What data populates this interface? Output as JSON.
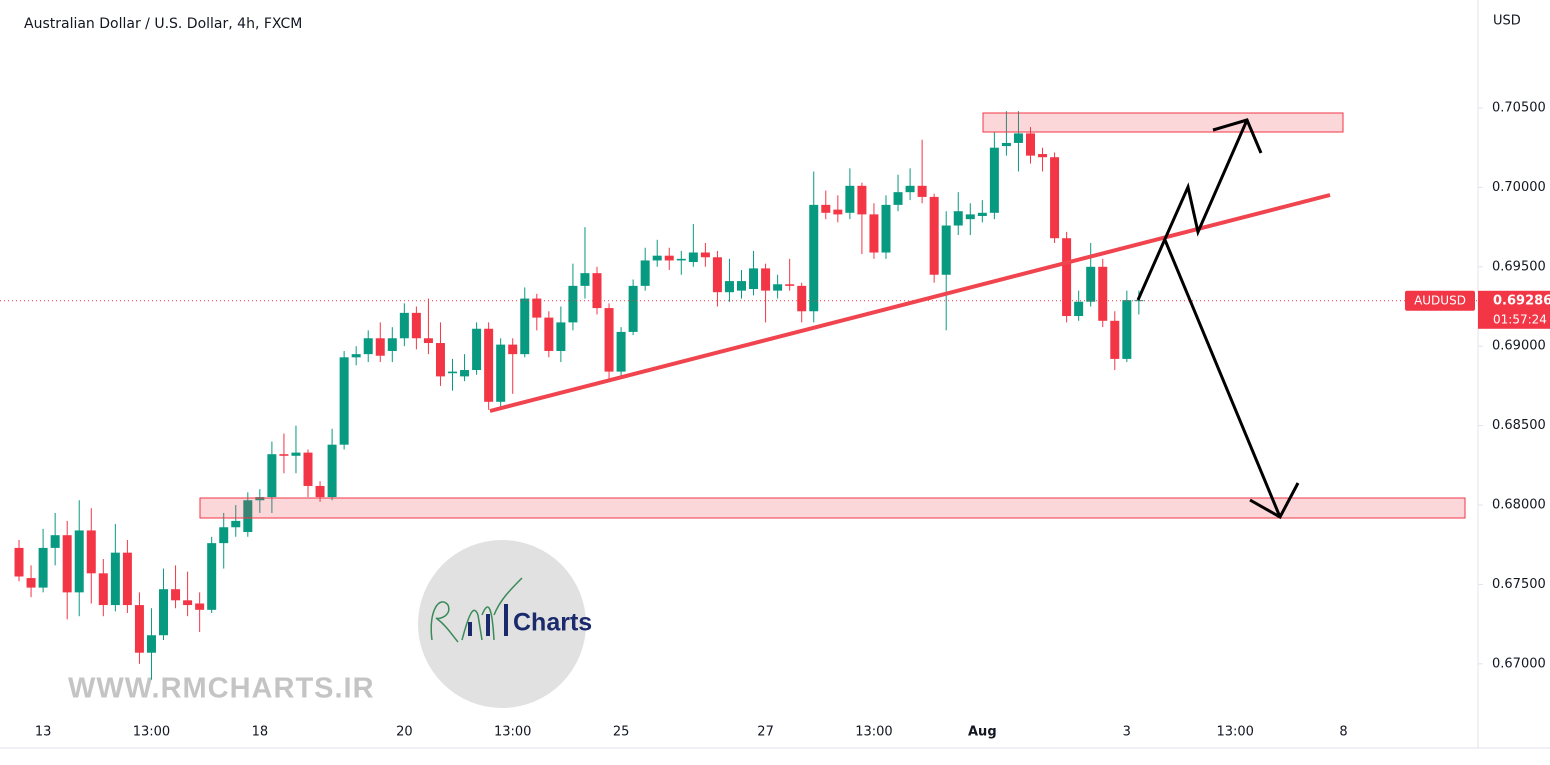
{
  "chart_data": {
    "type": "candlestick",
    "title": "Australian Dollar / U.S. Dollar, 4h, FXCM",
    "y_axis_label": "USD",
    "symbol": "AUDUSD",
    "last_price": 0.69286,
    "countdown": "01:57:24",
    "watermark": {
      "logo_text": "Charts",
      "url": "WWW.RMCHARTS.IR"
    },
    "up_color": "#089981",
    "down_color": "#f23645",
    "ylim": [
      0.6647,
      0.7118
    ],
    "yticks": [
      {
        "value": 0.67,
        "label": "0.67000"
      },
      {
        "value": 0.675,
        "label": "0.67500"
      },
      {
        "value": 0.68,
        "label": "0.68000"
      },
      {
        "value": 0.685,
        "label": "0.68500"
      },
      {
        "value": 0.69,
        "label": "0.69000"
      },
      {
        "value": 0.695,
        "label": "0.69500"
      },
      {
        "value": 0.7,
        "label": "0.70000"
      },
      {
        "value": 0.705,
        "label": "0.70500"
      }
    ],
    "categories": [
      null,
      null,
      "13",
      null,
      null,
      null,
      null,
      null,
      null,
      null,
      null,
      "13:00",
      null,
      null,
      null,
      null,
      null,
      null,
      null,
      null,
      "18",
      null,
      null,
      null,
      null,
      null,
      null,
      null,
      null,
      null,
      null,
      null,
      "20",
      null,
      null,
      null,
      null,
      null,
      null,
      null,
      null,
      "13:00",
      null,
      null,
      null,
      null,
      null,
      null,
      null,
      null,
      "25",
      null,
      null,
      null,
      null,
      null,
      null,
      null,
      null,
      null,
      null,
      null,
      "27",
      null,
      null,
      null,
      null,
      null,
      null,
      null,
      null,
      "13:00",
      null,
      null,
      null,
      null,
      null,
      null,
      null,
      null,
      "Aug",
      null,
      null,
      null,
      null,
      null,
      null,
      null,
      null,
      null,
      null,
      null,
      "3",
      null,
      null,
      null,
      null,
      null,
      null,
      null,
      null,
      "13:00",
      null,
      null,
      null,
      null,
      null,
      null,
      null,
      null,
      "8",
      null,
      null,
      null,
      null,
      null,
      null,
      null,
      null,
      null,
      null
    ],
    "open": [
      0.6773,
      0.6754,
      0.6748,
      0.6773,
      0.6781,
      0.6745,
      0.6784,
      0.6757,
      0.6737,
      0.677,
      0.6737,
      0.6707,
      0.6718,
      0.6747,
      0.674,
      0.6738,
      0.6734,
      0.6776,
      0.6786,
      0.6783,
      0.6803,
      0.6805,
      0.6832,
      0.6831,
      0.6833,
      0.6812,
      0.6805,
      0.6838,
      0.6893,
      0.6895,
      0.6905,
      0.6897,
      0.6905,
      0.6921,
      0.6905,
      0.6902,
      0.6883,
      0.6881,
      0.6885,
      0.6911,
      0.6865,
      0.6901,
      0.6895,
      0.693,
      0.6918,
      0.6897,
      0.6915,
      0.6938,
      0.6946,
      0.6924,
      0.6884,
      0.6909,
      0.6938,
      0.6954,
      0.6957,
      0.6954,
      0.6953,
      0.6959,
      0.6956,
      0.6934,
      0.6935,
      0.6936,
      0.6949,
      0.6935,
      0.6939,
      0.6938,
      0.6922,
      0.6989,
      0.6986,
      0.6984,
      0.7001,
      0.6983,
      0.6959,
      0.6989,
      0.6997,
      0.7001,
      0.6994,
      0.6945,
      0.6976,
      0.698,
      0.6982,
      0.6984,
      0.7026,
      0.7028,
      0.7034,
      0.7021,
      0.7019,
      0.6968,
      0.6919,
      0.6928,
      0.695,
      0.6916,
      0.6892,
      0.6929,
      null,
      null,
      null,
      null,
      null,
      null,
      null,
      null,
      null,
      null,
      null,
      null,
      null,
      null,
      null,
      null,
      null,
      null,
      null,
      null,
      null,
      null,
      null,
      null,
      null,
      null,
      null
    ],
    "high": [
      0.6778,
      0.6762,
      0.6785,
      0.6795,
      0.679,
      0.6803,
      0.6798,
      0.6766,
      0.6788,
      0.6778,
      0.6745,
      0.6735,
      0.676,
      0.6762,
      0.6758,
      0.6745,
      0.678,
      0.6795,
      0.68,
      0.6808,
      0.681,
      0.684,
      0.6845,
      0.685,
      0.6835,
      0.6815,
      0.6848,
      0.6897,
      0.69,
      0.691,
      0.6915,
      0.6912,
      0.6927,
      0.6925,
      0.693,
      0.6915,
      0.6892,
      0.6895,
      0.6915,
      0.6915,
      0.6905,
      0.6905,
      0.6937,
      0.6933,
      0.6922,
      0.6925,
      0.6952,
      0.6975,
      0.695,
      0.6927,
      0.6912,
      0.6942,
      0.6962,
      0.6967,
      0.6962,
      0.696,
      0.6977,
      0.6965,
      0.696,
      0.6955,
      0.6948,
      0.696,
      0.6952,
      0.6945,
      0.6955,
      0.694,
      0.701,
      0.6998,
      0.6995,
      0.7012,
      0.7003,
      0.699,
      0.6995,
      0.7008,
      0.7012,
      0.703,
      0.6996,
      0.6985,
      0.6997,
      0.699,
      0.6992,
      0.7035,
      0.7048,
      0.7048,
      0.7038,
      0.7025,
      0.7022,
      0.6972,
      0.6935,
      0.6965,
      0.6955,
      0.6922,
      0.6935,
      0.6935,
      null,
      null,
      null,
      null,
      null,
      null,
      null,
      null,
      null,
      null,
      null,
      null,
      null,
      null,
      null,
      null,
      null,
      null,
      null,
      null,
      null,
      null,
      null,
      null,
      null,
      null,
      null
    ],
    "low": [
      0.6752,
      0.6742,
      0.6745,
      0.6762,
      0.6728,
      0.673,
      0.6738,
      0.673,
      0.6733,
      0.6732,
      0.67,
      0.669,
      0.6715,
      0.6735,
      0.673,
      0.672,
      0.6732,
      0.676,
      0.678,
      0.678,
      0.6795,
      0.6795,
      0.682,
      0.682,
      0.6805,
      0.6802,
      0.6803,
      0.6835,
      0.6888,
      0.689,
      0.689,
      0.689,
      0.69,
      0.6898,
      0.6895,
      0.6875,
      0.6872,
      0.6878,
      0.6882,
      0.686,
      0.6862,
      0.687,
      0.6893,
      0.691,
      0.6893,
      0.689,
      0.691,
      0.693,
      0.692,
      0.6878,
      0.688,
      0.6907,
      0.6935,
      0.695,
      0.6948,
      0.6945,
      0.695,
      0.695,
      0.6925,
      0.6928,
      0.693,
      0.6932,
      0.6915,
      0.693,
      0.6935,
      0.6915,
      0.6915,
      0.698,
      0.6978,
      0.698,
      0.6958,
      0.6955,
      0.6955,
      0.6985,
      0.6992,
      0.699,
      0.694,
      0.691,
      0.697,
      0.697,
      0.6978,
      0.698,
      0.702,
      0.701,
      0.7015,
      0.701,
      0.6965,
      0.6915,
      0.6916,
      0.6925,
      0.6912,
      0.6885,
      0.689,
      0.692,
      null,
      null,
      null,
      null,
      null,
      null,
      null,
      null,
      null,
      null,
      null,
      null,
      null,
      null,
      null,
      null,
      null,
      null,
      null,
      null,
      null,
      null,
      null,
      null,
      null,
      null,
      null
    ],
    "close": [
      0.6755,
      0.6748,
      0.6773,
      0.6781,
      0.6745,
      0.6784,
      0.6757,
      0.6737,
      0.677,
      0.6737,
      0.6707,
      0.6718,
      0.6747,
      0.674,
      0.6737,
      0.6734,
      0.6776,
      0.6786,
      0.679,
      0.6803,
      0.6805,
      0.6832,
      0.6831,
      0.6833,
      0.6812,
      0.6805,
      0.6838,
      0.6893,
      0.6895,
      0.6905,
      0.6894,
      0.6905,
      0.6921,
      0.6905,
      0.6902,
      0.6881,
      0.6884,
      0.6885,
      0.6911,
      0.6865,
      0.6901,
      0.6895,
      0.693,
      0.6918,
      0.6897,
      0.6915,
      0.6938,
      0.6946,
      0.6924,
      0.6884,
      0.6909,
      0.6938,
      0.6954,
      0.6957,
      0.6954,
      0.6955,
      0.6959,
      0.6956,
      0.6934,
      0.6941,
      0.6941,
      0.6949,
      0.6935,
      0.6939,
      0.6938,
      0.6922,
      0.6989,
      0.6984,
      0.6983,
      0.7001,
      0.6983,
      0.6959,
      0.6989,
      0.6997,
      0.7001,
      0.6994,
      0.6945,
      0.6976,
      0.6985,
      0.6983,
      0.6984,
      0.7025,
      0.7028,
      0.7034,
      0.702,
      0.7019,
      0.6968,
      0.6919,
      0.6928,
      0.695,
      0.6916,
      0.6892,
      0.6929,
      0.6929,
      null,
      null,
      null,
      null,
      null,
      null,
      null,
      null,
      null,
      null,
      null,
      null,
      null,
      null,
      null,
      null,
      null,
      null,
      null,
      null,
      null,
      null,
      null,
      null,
      null,
      null,
      null
    ]
  }
}
